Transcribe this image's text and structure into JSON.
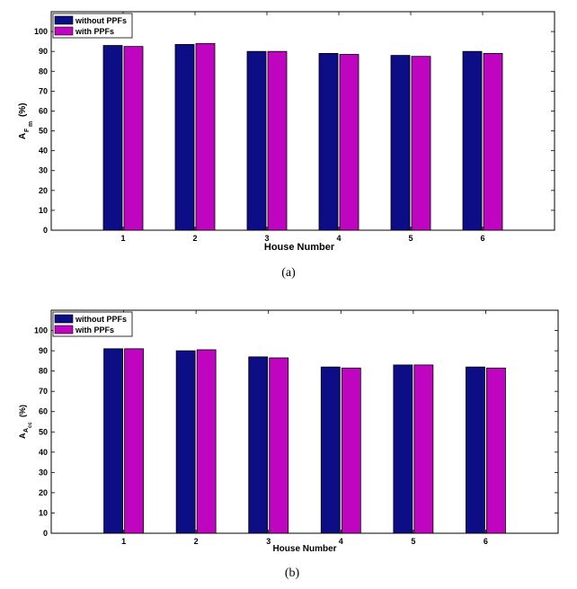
{
  "chart_data": [
    {
      "type": "bar",
      "panel": "(a)",
      "categories": [
        "1",
        "2",
        "3",
        "4",
        "5",
        "6"
      ],
      "series": [
        {
          "name": "without PPFs",
          "color": "#0d0d85",
          "values": [
            93,
            93.5,
            90,
            89,
            88,
            90
          ]
        },
        {
          "name": "with PPFs",
          "color": "#c005c0",
          "values": [
            92.5,
            94,
            90,
            88.5,
            87.5,
            89
          ]
        }
      ],
      "xlabel": "House Number",
      "ylabel": {
        "main": "A",
        "sub1": "F",
        "sub2": "m",
        "unit": "(%)"
      },
      "ylim": [
        0,
        110
      ],
      "yticks": [
        "0",
        "10",
        "20",
        "30",
        "40",
        "50",
        "60",
        "70",
        "80",
        "90",
        "100"
      ],
      "caption": "(a)"
    },
    {
      "type": "bar",
      "panel": "(b)",
      "categories": [
        "1",
        "2",
        "3",
        "4",
        "5",
        "6"
      ],
      "series": [
        {
          "name": "without PPFs",
          "color": "#0d0d85",
          "values": [
            91,
            90,
            87,
            82,
            83,
            82
          ]
        },
        {
          "name": "with PPFs",
          "color": "#c005c0",
          "values": [
            91,
            90.5,
            86.5,
            81.5,
            83,
            81.5
          ]
        }
      ],
      "xlabel": "House Number",
      "ylabel": {
        "main": "A",
        "sub1": "A",
        "sub2": "cc",
        "unit": "(%)"
      },
      "ylim": [
        0,
        110
      ],
      "yticks": [
        "0",
        "10",
        "20",
        "30",
        "40",
        "50",
        "60",
        "70",
        "80",
        "90",
        "100"
      ],
      "caption": "(b)"
    }
  ]
}
